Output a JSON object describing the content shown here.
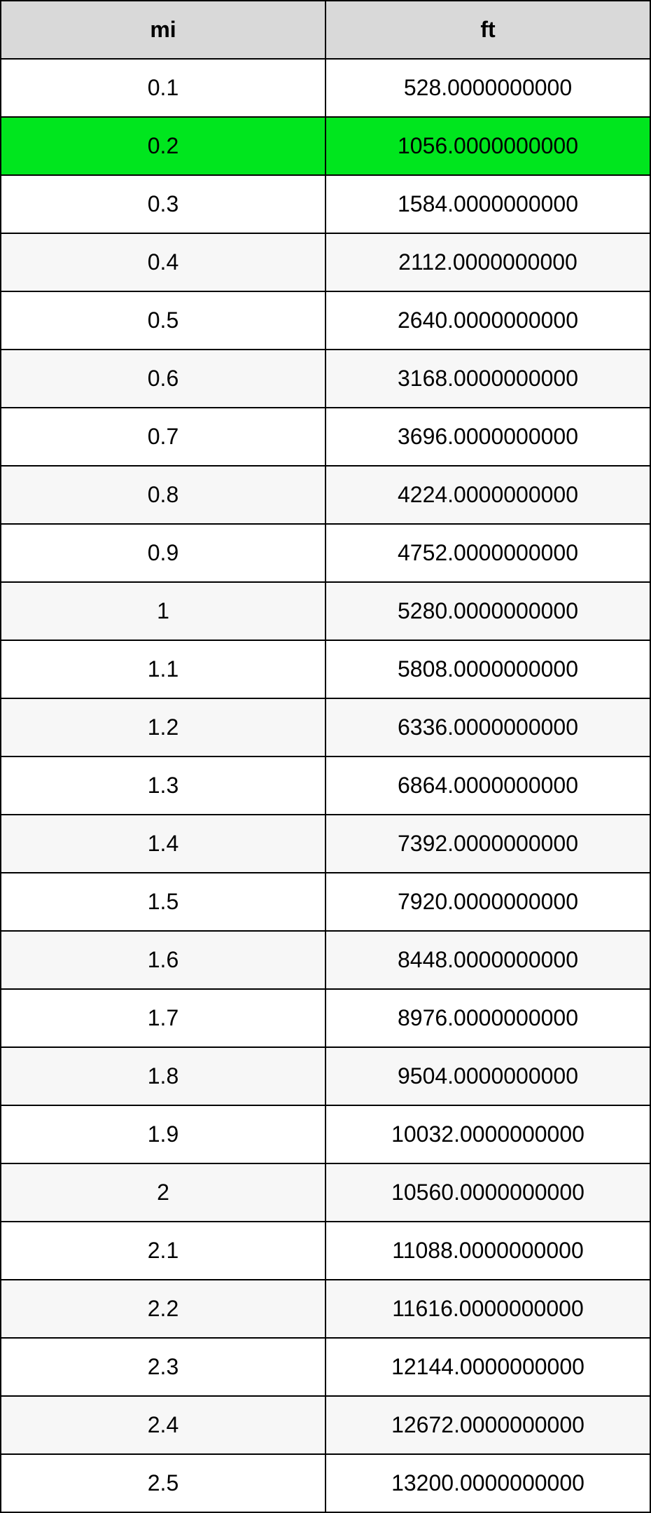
{
  "table": {
    "header_bg": "#d9d9d9",
    "row_white_bg": "#ffffff",
    "row_alt_bg": "#f7f7f7",
    "row_highlight_bg": "#00e61e",
    "border_color": "#000000",
    "font_size": 32,
    "columns": [
      {
        "key": "mi",
        "label": "mi"
      },
      {
        "key": "ft",
        "label": "ft"
      }
    ],
    "rows": [
      {
        "mi": "0.1",
        "ft": "528.0000000000",
        "bg": "white"
      },
      {
        "mi": "0.2",
        "ft": "1056.0000000000",
        "bg": "highlight"
      },
      {
        "mi": "0.3",
        "ft": "1584.0000000000",
        "bg": "white"
      },
      {
        "mi": "0.4",
        "ft": "2112.0000000000",
        "bg": "alt"
      },
      {
        "mi": "0.5",
        "ft": "2640.0000000000",
        "bg": "white"
      },
      {
        "mi": "0.6",
        "ft": "3168.0000000000",
        "bg": "alt"
      },
      {
        "mi": "0.7",
        "ft": "3696.0000000000",
        "bg": "white"
      },
      {
        "mi": "0.8",
        "ft": "4224.0000000000",
        "bg": "alt"
      },
      {
        "mi": "0.9",
        "ft": "4752.0000000000",
        "bg": "white"
      },
      {
        "mi": "1",
        "ft": "5280.0000000000",
        "bg": "alt"
      },
      {
        "mi": "1.1",
        "ft": "5808.0000000000",
        "bg": "white"
      },
      {
        "mi": "1.2",
        "ft": "6336.0000000000",
        "bg": "alt"
      },
      {
        "mi": "1.3",
        "ft": "6864.0000000000",
        "bg": "white"
      },
      {
        "mi": "1.4",
        "ft": "7392.0000000000",
        "bg": "alt"
      },
      {
        "mi": "1.5",
        "ft": "7920.0000000000",
        "bg": "white"
      },
      {
        "mi": "1.6",
        "ft": "8448.0000000000",
        "bg": "alt"
      },
      {
        "mi": "1.7",
        "ft": "8976.0000000000",
        "bg": "white"
      },
      {
        "mi": "1.8",
        "ft": "9504.0000000000",
        "bg": "alt"
      },
      {
        "mi": "1.9",
        "ft": "10032.0000000000",
        "bg": "white"
      },
      {
        "mi": "2",
        "ft": "10560.0000000000",
        "bg": "alt"
      },
      {
        "mi": "2.1",
        "ft": "11088.0000000000",
        "bg": "white"
      },
      {
        "mi": "2.2",
        "ft": "11616.0000000000",
        "bg": "alt"
      },
      {
        "mi": "2.3",
        "ft": "12144.0000000000",
        "bg": "white"
      },
      {
        "mi": "2.4",
        "ft": "12672.0000000000",
        "bg": "alt"
      },
      {
        "mi": "2.5",
        "ft": "13200.0000000000",
        "bg": "white"
      }
    ]
  }
}
